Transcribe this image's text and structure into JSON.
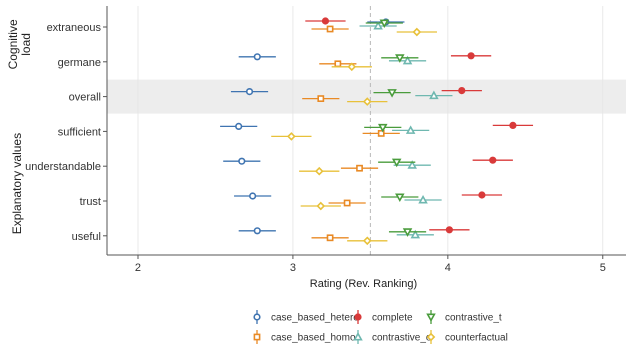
{
  "chart_data": {
    "type": "scatter",
    "subtype": "point-range (mean with error bars)",
    "xlabel": "Rating (Rev. Ranking)",
    "xlim": [
      1.8,
      5.15
    ],
    "xticks": [
      2,
      3,
      4,
      5
    ],
    "grid": "vertical gridlines at x ticks",
    "reference_line": {
      "x": 3.5,
      "style": "dashed"
    },
    "highlighted_row": "overall",
    "legend_position": "bottom",
    "groups": [
      {
        "label": "Cognitive load",
        "rows": [
          "extraneous",
          "germane"
        ]
      },
      {
        "label": "Explanatory values",
        "rows": [
          "sufficient",
          "understandable",
          "trust",
          "useful"
        ]
      }
    ],
    "rows": [
      "extraneous",
      "germane",
      "overall",
      "sufficient",
      "understandable",
      "trust",
      "useful"
    ],
    "series": [
      {
        "name": "case_based_hetero",
        "color": "#3f74b1",
        "marker": "circle",
        "points": [
          {
            "row": "extraneous",
            "mean": 3.6,
            "ci": [
              3.48,
              3.72
            ]
          },
          {
            "row": "germane",
            "mean": 2.77,
            "ci": [
              2.65,
              2.89
            ]
          },
          {
            "row": "overall",
            "mean": 2.72,
            "ci": [
              2.6,
              2.84
            ]
          },
          {
            "row": "sufficient",
            "mean": 2.65,
            "ci": [
              2.53,
              2.77
            ]
          },
          {
            "row": "understandable",
            "mean": 2.67,
            "ci": [
              2.55,
              2.79
            ]
          },
          {
            "row": "trust",
            "mean": 2.74,
            "ci": [
              2.62,
              2.86
            ]
          },
          {
            "row": "useful",
            "mean": 2.77,
            "ci": [
              2.65,
              2.89
            ]
          }
        ]
      },
      {
        "name": "case_based_homo",
        "color": "#e98a25",
        "marker": "square",
        "points": [
          {
            "row": "extraneous",
            "mean": 3.24,
            "ci": [
              3.12,
              3.36
            ]
          },
          {
            "row": "germane",
            "mean": 3.29,
            "ci": [
              3.17,
              3.41
            ]
          },
          {
            "row": "overall",
            "mean": 3.18,
            "ci": [
              3.06,
              3.3
            ]
          },
          {
            "row": "sufficient",
            "mean": 3.57,
            "ci": [
              3.45,
              3.69
            ]
          },
          {
            "row": "understandable",
            "mean": 3.43,
            "ci": [
              3.31,
              3.55
            ]
          },
          {
            "row": "trust",
            "mean": 3.35,
            "ci": [
              3.23,
              3.47
            ]
          },
          {
            "row": "useful",
            "mean": 3.24,
            "ci": [
              3.12,
              3.36
            ]
          }
        ]
      },
      {
        "name": "complete",
        "color": "#d93a3a",
        "marker": "circle",
        "points": [
          {
            "row": "extraneous",
            "mean": 3.21,
            "ci": [
              3.08,
              3.34
            ]
          },
          {
            "row": "germane",
            "mean": 4.15,
            "ci": [
              4.02,
              4.28
            ]
          },
          {
            "row": "overall",
            "mean": 4.09,
            "ci": [
              3.96,
              4.22
            ]
          },
          {
            "row": "sufficient",
            "mean": 4.42,
            "ci": [
              4.29,
              4.55
            ]
          },
          {
            "row": "understandable",
            "mean": 4.29,
            "ci": [
              4.16,
              4.42
            ]
          },
          {
            "row": "trust",
            "mean": 4.22,
            "ci": [
              4.09,
              4.35
            ]
          },
          {
            "row": "useful",
            "mean": 4.01,
            "ci": [
              3.88,
              4.14
            ]
          }
        ]
      },
      {
        "name": "contrastive_o",
        "color": "#6fb8b0",
        "marker": "triangle-up",
        "points": [
          {
            "row": "extraneous",
            "mean": 3.55,
            "ci": [
              3.43,
              3.67
            ]
          },
          {
            "row": "germane",
            "mean": 3.74,
            "ci": [
              3.62,
              3.86
            ]
          },
          {
            "row": "overall",
            "mean": 3.91,
            "ci": [
              3.79,
              4.03
            ]
          },
          {
            "row": "sufficient",
            "mean": 3.76,
            "ci": [
              3.64,
              3.88
            ]
          },
          {
            "row": "understandable",
            "mean": 3.77,
            "ci": [
              3.65,
              3.89
            ]
          },
          {
            "row": "trust",
            "mean": 3.84,
            "ci": [
              3.72,
              3.96
            ]
          },
          {
            "row": "useful",
            "mean": 3.79,
            "ci": [
              3.67,
              3.91
            ]
          }
        ]
      },
      {
        "name": "contrastive_t",
        "color": "#4a9c3c",
        "marker": "triangle-down",
        "points": [
          {
            "row": "extraneous",
            "mean": 3.59,
            "ci": [
              3.47,
              3.71
            ]
          },
          {
            "row": "germane",
            "mean": 3.69,
            "ci": [
              3.57,
              3.81
            ]
          },
          {
            "row": "overall",
            "mean": 3.64,
            "ci": [
              3.52,
              3.76
            ]
          },
          {
            "row": "sufficient",
            "mean": 3.58,
            "ci": [
              3.46,
              3.7
            ]
          },
          {
            "row": "understandable",
            "mean": 3.67,
            "ci": [
              3.55,
              3.79
            ]
          },
          {
            "row": "trust",
            "mean": 3.69,
            "ci": [
              3.57,
              3.81
            ]
          },
          {
            "row": "useful",
            "mean": 3.74,
            "ci": [
              3.62,
              3.86
            ]
          }
        ]
      },
      {
        "name": "counterfactual",
        "color": "#e8c13a",
        "marker": "diamond",
        "points": [
          {
            "row": "extraneous",
            "mean": 3.8,
            "ci": [
              3.67,
              3.93
            ]
          },
          {
            "row": "germane",
            "mean": 3.38,
            "ci": [
              3.25,
              3.51
            ]
          },
          {
            "row": "overall",
            "mean": 3.48,
            "ci": [
              3.35,
              3.61
            ]
          },
          {
            "row": "sufficient",
            "mean": 2.99,
            "ci": [
              2.86,
              3.12
            ]
          },
          {
            "row": "understandable",
            "mean": 3.17,
            "ci": [
              3.04,
              3.3
            ]
          },
          {
            "row": "trust",
            "mean": 3.18,
            "ci": [
              3.05,
              3.31
            ]
          },
          {
            "row": "useful",
            "mean": 3.48,
            "ci": [
              3.35,
              3.61
            ]
          }
        ]
      }
    ]
  }
}
